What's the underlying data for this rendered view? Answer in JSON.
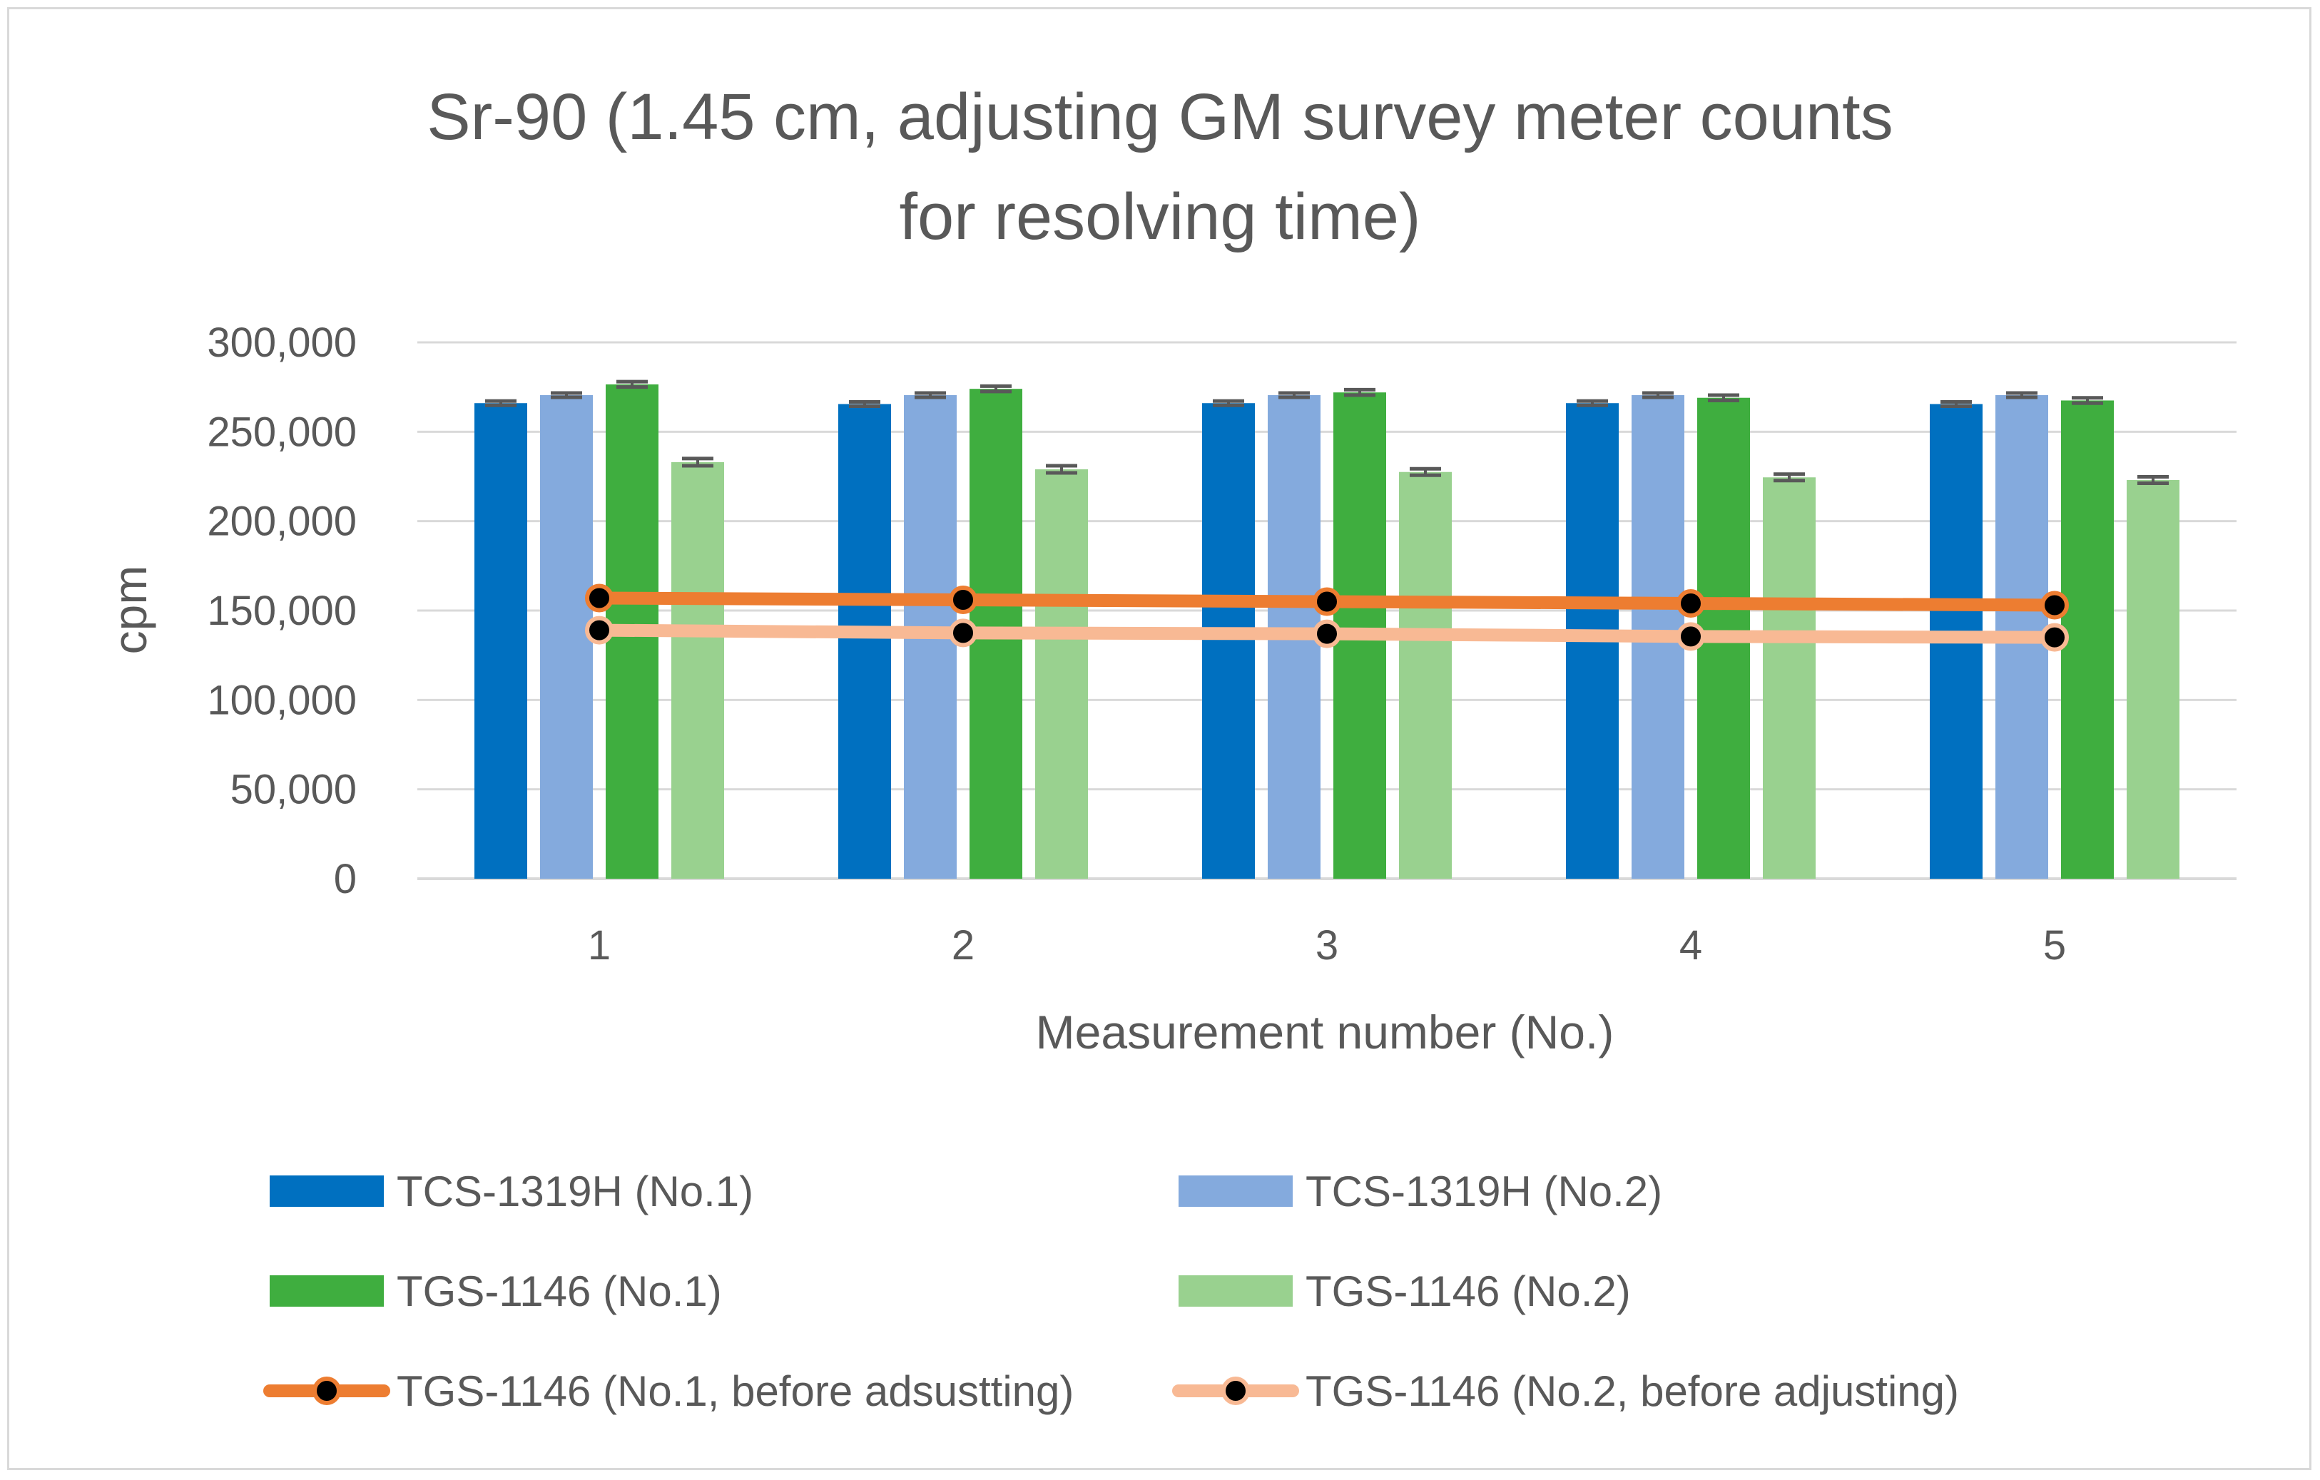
{
  "chart_data": {
    "type": "bar",
    "title_lines": [
      "Sr-90 (1.45 cm, adjusting GM survey meter counts",
      "for resolving time)"
    ],
    "xlabel": "Measurement number (No.)",
    "ylabel": "cpm",
    "categories": [
      "1",
      "2",
      "3",
      "4",
      "5"
    ],
    "ylim": [
      0,
      300000
    ],
    "yticks": [
      0,
      50000,
      100000,
      150000,
      200000,
      250000,
      300000
    ],
    "ytick_labels": [
      "0",
      "50,000",
      "100,000",
      "150,000",
      "200,000",
      "250,000",
      "300,000"
    ],
    "grid": true,
    "legend_position": "bottom",
    "bar_series": [
      {
        "name": "TCS-1319H (No.1)",
        "color": "#0070c0",
        "values": [
          266000,
          265500,
          266000,
          266000,
          265500
        ],
        "errors": [
          1200,
          1200,
          1200,
          1200,
          1200
        ]
      },
      {
        "name": "TCS-1319H (No.2)",
        "color": "#84aadd",
        "values": [
          270500,
          270500,
          270500,
          270500,
          270500
        ],
        "errors": [
          1200,
          1200,
          1200,
          1200,
          1200
        ]
      },
      {
        "name": "TGS-1146 (No.1)",
        "color": "#3fae3f",
        "values": [
          276500,
          274000,
          272000,
          269000,
          267500
        ],
        "errors": [
          1500,
          1500,
          1500,
          1500,
          1500
        ]
      },
      {
        "name": "TGS-1146 (No.2)",
        "color": "#99d18f",
        "values": [
          233000,
          229000,
          227500,
          224500,
          223000
        ],
        "errors": [
          2000,
          2000,
          1800,
          1800,
          1800
        ]
      }
    ],
    "line_series": [
      {
        "name": "TGS-1146 (No.1, before adsustting)",
        "color": "#ed7d31",
        "marker_color": "#000000",
        "values": [
          157000,
          156000,
          155000,
          154000,
          153000
        ]
      },
      {
        "name": "TGS-1146 (No.2, before adjusting)",
        "color": "#f8b994",
        "marker_color": "#000000",
        "values": [
          139000,
          137500,
          137000,
          135500,
          135000
        ]
      }
    ],
    "colors": {
      "text": "#595959",
      "grid": "#d9d9d9",
      "error_bar": "#595959"
    }
  }
}
